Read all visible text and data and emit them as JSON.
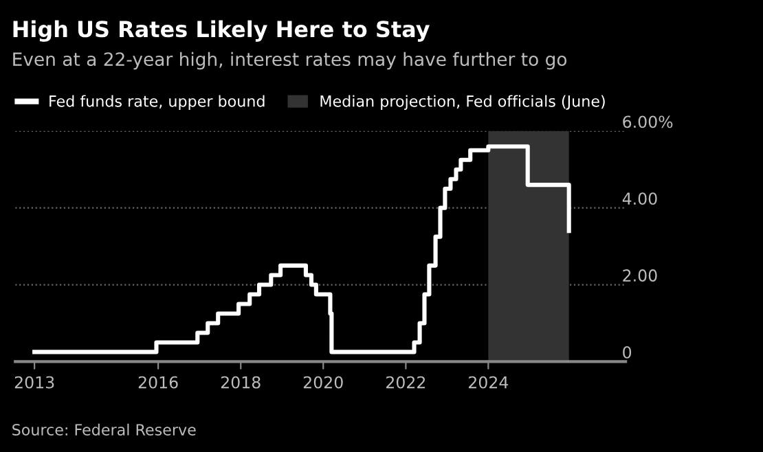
{
  "chart_data": {
    "type": "step",
    "title": "High US Rates Likely Here to Stay",
    "subtitle": "Even at a 22-year high, interest rates may have further to go",
    "annotations": [
      "Source: Federal Reserve"
    ],
    "series": [
      {
        "name": "Fed funds rate, upper bound",
        "color": "#ffffff",
        "x": [
          "2013-01-01",
          "2015-12-16",
          "2016-12-14",
          "2017-03-15",
          "2017-06-14",
          "2017-12-13",
          "2018-03-21",
          "2018-06-13",
          "2018-09-26",
          "2018-12-19",
          "2019-07-31",
          "2019-09-18",
          "2019-10-30",
          "2020-03-03",
          "2020-03-15",
          "2022-03-16",
          "2022-05-04",
          "2022-06-15",
          "2022-07-27",
          "2022-09-21",
          "2022-11-02",
          "2022-12-14",
          "2023-02-01",
          "2023-03-22",
          "2023-05-03",
          "2023-07-26",
          "2024-01-01",
          "2024-12-15",
          "2025-12-15"
        ],
        "values": [
          0.25,
          0.5,
          0.75,
          1.0,
          1.25,
          1.5,
          1.75,
          2.0,
          2.25,
          2.5,
          2.25,
          2.0,
          1.75,
          1.25,
          0.25,
          0.5,
          1.0,
          1.75,
          2.5,
          3.25,
          4.0,
          4.5,
          4.75,
          5.0,
          5.25,
          5.5,
          5.6,
          4.6,
          3.4
        ]
      }
    ],
    "bands": [
      {
        "axis": "x",
        "from": "2024-01-01",
        "to": "2025-12-15",
        "label": "Median projection, Fed officials (June)",
        "color": "#333333"
      }
    ],
    "xlim": [
      "2012-07-15",
      "2027-05-01"
    ],
    "xticks": [
      {
        "value": "2013-01-01",
        "label": "2013"
      },
      {
        "value": "2016-01-01",
        "label": "2016"
      },
      {
        "value": "2018-01-01",
        "label": "2018"
      },
      {
        "value": "2020-01-01",
        "label": "2020"
      },
      {
        "value": "2022-01-01",
        "label": "2022"
      },
      {
        "value": "2024-01-01",
        "label": "2024"
      }
    ],
    "ylim": [
      0,
      6
    ],
    "yticks": [
      {
        "value": 0,
        "label": "0"
      },
      {
        "value": 2,
        "label": "2.00"
      },
      {
        "value": 4,
        "label": "4.00"
      },
      {
        "value": 6,
        "label": "6.00%"
      }
    ],
    "grid": "y",
    "legend": "top left",
    "line_style": "solid",
    "marker": "none"
  }
}
